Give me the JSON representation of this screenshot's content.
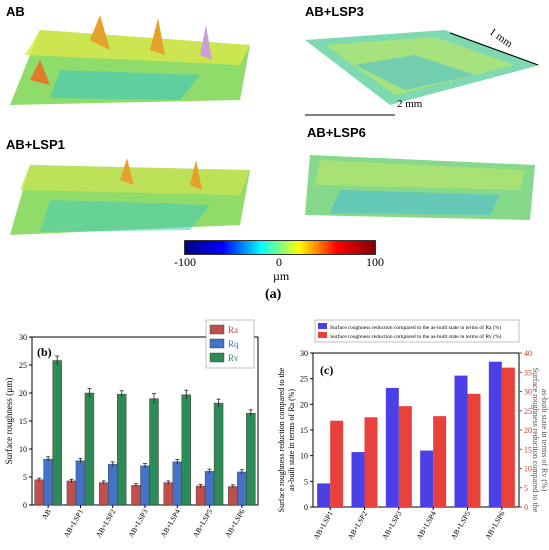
{
  "figure_label_a": "(a)",
  "topo": {
    "panels": [
      {
        "label": "AB"
      },
      {
        "label": "AB+LSP3"
      },
      {
        "label": "AB+LSP1"
      },
      {
        "label": "AB+LSP6"
      }
    ],
    "dim_1": "1 mm",
    "dim_2": "2 mm",
    "colorbar": {
      "ticks": [
        "-100",
        "0",
        "100"
      ],
      "unit": "µm",
      "colors": [
        "#000080",
        "#0000ff",
        "#00ffff",
        "#ffff00",
        "#ff0000",
        "#800000"
      ]
    }
  },
  "chart_data": [
    {
      "type": "bar",
      "panel": "(b)",
      "ylabel": "Surface roughness (µm)",
      "ylim": [
        0,
        30
      ],
      "yticks": [
        0,
        5,
        10,
        15,
        20,
        25,
        30
      ],
      "categories": [
        "AB",
        "AB+LSP1",
        "AB+LSP2",
        "AB+LSP3",
        "AB+LSP4",
        "AB+LSP5",
        "AB+LSP6"
      ],
      "series": [
        {
          "name": "Ra",
          "color": "#c0504d",
          "values": [
            4.5,
            4.3,
            4.0,
            3.5,
            4.0,
            3.4,
            3.3
          ],
          "errors": [
            0.3,
            0.3,
            0.3,
            0.3,
            0.3,
            0.3,
            0.3
          ]
        },
        {
          "name": "Rq",
          "color": "#4472c4",
          "values": [
            8.2,
            7.9,
            7.3,
            7.0,
            7.7,
            6.0,
            5.9
          ],
          "errors": [
            0.4,
            0.4,
            0.4,
            0.4,
            0.4,
            0.4,
            0.4
          ]
        },
        {
          "name": "Rv",
          "color": "#2e8b57",
          "values": [
            25.8,
            20.0,
            19.8,
            19.0,
            19.7,
            18.2,
            16.4
          ],
          "errors": [
            0.8,
            0.8,
            0.6,
            0.9,
            0.8,
            0.7,
            0.6
          ]
        }
      ],
      "legend": "top-right",
      "grid": false
    },
    {
      "type": "bar",
      "panel": "(c)",
      "ylabel_left": "Surface roughness reduction compared to the as-built state in terms of Ra (%)",
      "ylabel_right": "Surface roughness reduction compared to the as-built state in terms of Rv (%)",
      "ylim_left": [
        0,
        30
      ],
      "ylim_right": [
        0,
        40
      ],
      "yticks_left": [
        0,
        5,
        10,
        15,
        20,
        25,
        30
      ],
      "yticks_right": [
        0,
        5,
        10,
        15,
        20,
        25,
        30,
        35,
        40
      ],
      "categories": [
        "AB+LSP1",
        "AB+LSP2",
        "AB+LSP3",
        "AB+LSP4",
        "AB+LSP5",
        "AB+LSP6"
      ],
      "series": [
        {
          "name": "Surface roughness reduction compared to the as-built state in terms of Ra (%)",
          "color": "#4b3fe8",
          "axis": "left",
          "values": [
            4.6,
            10.7,
            23.2,
            11.0,
            25.6,
            28.3
          ]
        },
        {
          "name": "Surface roughness reduction compared to the as-built state in terms of Rv (%)",
          "color": "#e8413c",
          "axis": "right",
          "values": [
            22.4,
            23.3,
            26.2,
            23.6,
            29.4,
            36.2
          ]
        }
      ],
      "legend": "top",
      "grid": false
    }
  ]
}
